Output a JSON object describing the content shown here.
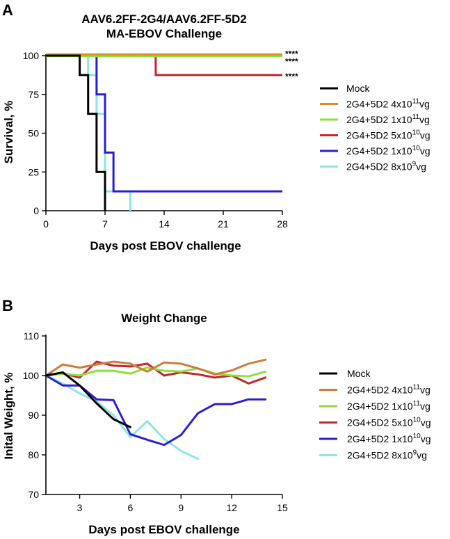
{
  "chart_data": [
    {
      "panel": "A",
      "type": "line",
      "style": "step",
      "title": [
        "AAV6.2FF-2G4/AAV6.2FF-5D2",
        "MA-EBOV Challenge"
      ],
      "xlabel": "Days post EBOV challenge",
      "ylabel": "Survival, %",
      "xlim": [
        0,
        28
      ],
      "ylim": [
        0,
        100
      ],
      "xticks": [
        0,
        7,
        14,
        21,
        28
      ],
      "yticks": [
        0,
        25,
        50,
        75,
        100
      ],
      "series": [
        {
          "key": "mock",
          "name": "Mock",
          "color": "#000000",
          "x": [
            0,
            4,
            5,
            6,
            7
          ],
          "y": [
            100,
            87.5,
            62.5,
            25,
            0
          ],
          "end": 7
        },
        {
          "key": "g4e11",
          "name": "2G4+5D2 4x10",
          "sup": "11",
          "suffix": "vg",
          "color": "#e08a2a",
          "x": [
            0
          ],
          "y": [
            100
          ],
          "end": 28
        },
        {
          "key": "g1e11",
          "name": "2G4+5D2 1x10",
          "sup": "11",
          "suffix": "vg",
          "color": "#8ee03a",
          "x": [
            0
          ],
          "y": [
            100
          ],
          "end": 28
        },
        {
          "key": "g5e10",
          "name": "2G4+5D2 5x10",
          "sup": "10",
          "suffix": "vg",
          "color": "#c0282d",
          "x": [
            0,
            13
          ],
          "y": [
            100,
            87.5
          ],
          "end": 28
        },
        {
          "key": "g1e10",
          "name": "2G4+5D2 1x10",
          "sup": "10",
          "suffix": "vg",
          "color": "#2a1fd0",
          "x": [
            0,
            6,
            7,
            8
          ],
          "y": [
            100,
            75,
            37.5,
            12.5
          ],
          "end": 28
        },
        {
          "key": "g8e9",
          "name": "2G4+5D2 8x10",
          "sup": "9",
          "suffix": "vg",
          "color": "#8ee5e5",
          "x": [
            0,
            5,
            6,
            7,
            10
          ],
          "y": [
            100,
            87.5,
            62.5,
            12.5,
            0
          ],
          "end": 10
        }
      ],
      "annotations": [
        {
          "text": "****",
          "series": "g4e11",
          "y": 102
        },
        {
          "text": "****",
          "series": "g1e11",
          "y": 97
        },
        {
          "text": "****",
          "series": "g5e10",
          "y": 87.5
        }
      ]
    },
    {
      "panel": "B",
      "type": "line",
      "title": "Weight Change",
      "xlabel": "Days post EBOV challenge",
      "ylabel": "Inital Weight, %",
      "xlim": [
        1,
        15
      ],
      "ylim": [
        70,
        110
      ],
      "xticks": [
        3,
        6,
        9,
        12,
        15
      ],
      "yticks": [
        70,
        80,
        90,
        100,
        110
      ],
      "series": [
        {
          "key": "mock",
          "name": "Mock",
          "color": "#000000",
          "x": [
            1,
            2,
            3,
            4,
            5,
            6
          ],
          "y": [
            100,
            100.8,
            97.5,
            93,
            89,
            87
          ]
        },
        {
          "key": "g4e11",
          "name": "2G4+5D2 4x10",
          "sup": "11",
          "suffix": "vg",
          "color": "#d07a3a",
          "x": [
            1,
            2,
            3,
            4,
            5,
            6,
            7,
            8,
            9,
            10,
            11,
            12,
            13,
            14
          ],
          "y": [
            100,
            102.8,
            102,
            102.8,
            103.5,
            103,
            101,
            103.3,
            103,
            101.8,
            100.3,
            101.3,
            103,
            104
          ]
        },
        {
          "key": "g1e11",
          "name": "2G4+5D2 1x10",
          "sup": "11",
          "suffix": "vg",
          "color": "#8ee03a",
          "x": [
            1,
            2,
            3,
            4,
            5,
            6,
            7,
            8,
            9,
            10,
            11,
            12,
            13,
            14
          ],
          "y": [
            100,
            100.5,
            100,
            101.2,
            101.2,
            100.5,
            102,
            101.2,
            101,
            101.8,
            100.5,
            100,
            99.8,
            101
          ]
        },
        {
          "key": "g5e10",
          "name": "2G4+5D2 5x10",
          "sup": "10",
          "suffix": "vg",
          "color": "#c0282d",
          "x": [
            1,
            2,
            3,
            4,
            5,
            6,
            7,
            8,
            9,
            10,
            11,
            12,
            13,
            14
          ],
          "y": [
            100,
            100.5,
            99.5,
            103.5,
            102.5,
            102.3,
            103,
            100,
            100.8,
            100.3,
            99.5,
            100,
            98,
            99.5
          ]
        },
        {
          "key": "g1e10",
          "name": "2G4+5D2 1x10",
          "sup": "10",
          "suffix": "vg",
          "color": "#2a1fd0",
          "x": [
            1,
            2,
            3,
            4,
            5,
            6,
            7,
            8,
            9,
            10,
            11,
            12,
            13,
            14
          ],
          "y": [
            100,
            97.5,
            97.5,
            94,
            93.8,
            85.2,
            83.8,
            82.5,
            85,
            90.5,
            92.8,
            92.8,
            94,
            94
          ]
        },
        {
          "key": "g8e9",
          "name": "2G4+5D2 8x10",
          "sup": "9",
          "suffix": "vg",
          "color": "#8ee5e5",
          "x": [
            1,
            2,
            3,
            4,
            5,
            6,
            7,
            8,
            9,
            10
          ],
          "y": [
            100,
            98,
            95.5,
            93.5,
            90,
            84.5,
            88.5,
            84,
            81,
            79
          ]
        }
      ]
    }
  ]
}
